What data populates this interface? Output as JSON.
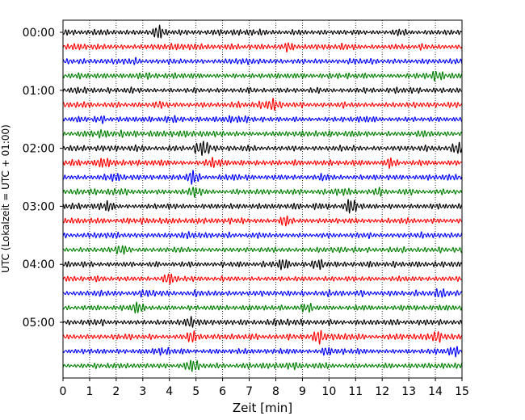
{
  "chart_data": {
    "type": "line",
    "title": "",
    "chart_subtype": "helicorder / seismogram drum plot",
    "xlabel": "Zeit  [min]",
    "ylabel": "UTC (Lokalzeit = UTC + 01:00)",
    "xlim": [
      0,
      15
    ],
    "x_ticks": [
      0,
      1,
      2,
      3,
      4,
      5,
      6,
      7,
      8,
      9,
      10,
      11,
      12,
      13,
      14,
      15
    ],
    "y_tick_labels": [
      "00:00",
      "01:00",
      "02:00",
      "03:00",
      "04:00",
      "05:00"
    ],
    "trace_colors": [
      "#000000",
      "#ff0000",
      "#0000ff",
      "#008000"
    ],
    "trace_count": 24,
    "minutes_per_trace": 15,
    "grid": "vertical dotted at each minute",
    "legend": "none",
    "series": [
      {
        "start": "00:00",
        "color": "#000000",
        "bursts": [
          [
            3.6,
            0.85
          ]
        ]
      },
      {
        "start": "00:15",
        "color": "#ff0000",
        "bursts": [
          [
            8.5,
            0.45
          ]
        ]
      },
      {
        "start": "00:30",
        "color": "#0000ff",
        "bursts": []
      },
      {
        "start": "00:45",
        "color": "#008000",
        "bursts": [
          [
            14.1,
            0.55
          ]
        ]
      },
      {
        "start": "01:00",
        "color": "#000000",
        "bursts": []
      },
      {
        "start": "01:15",
        "color": "#ff0000",
        "bursts": [
          [
            7.9,
            0.7
          ]
        ]
      },
      {
        "start": "01:30",
        "color": "#0000ff",
        "bursts": []
      },
      {
        "start": "01:45",
        "color": "#008000",
        "bursts": [
          [
            1.5,
            0.35
          ]
        ]
      },
      {
        "start": "02:00",
        "color": "#000000",
        "bursts": [
          [
            5.3,
            0.9
          ],
          [
            14.8,
            0.5
          ]
        ]
      },
      {
        "start": "02:15",
        "color": "#ff0000",
        "bursts": [
          [
            1.5,
            0.55
          ],
          [
            5.6,
            0.55
          ],
          [
            12.3,
            0.45
          ]
        ]
      },
      {
        "start": "02:30",
        "color": "#0000ff",
        "bursts": [
          [
            4.9,
            0.85
          ],
          [
            2.0,
            0.45
          ]
        ]
      },
      {
        "start": "02:45",
        "color": "#008000",
        "bursts": [
          [
            4.9,
            0.45
          ],
          [
            11.9,
            0.45
          ]
        ]
      },
      {
        "start": "03:00",
        "color": "#000000",
        "bursts": [
          [
            10.8,
            0.9
          ],
          [
            1.7,
            0.45
          ]
        ]
      },
      {
        "start": "03:15",
        "color": "#ff0000",
        "bursts": [
          [
            8.4,
            0.5
          ]
        ]
      },
      {
        "start": "03:30",
        "color": "#0000ff",
        "bursts": []
      },
      {
        "start": "03:45",
        "color": "#008000",
        "bursts": [
          [
            2.2,
            0.35
          ]
        ]
      },
      {
        "start": "04:00",
        "color": "#000000",
        "bursts": [
          [
            8.3,
            0.55
          ],
          [
            9.6,
            0.55
          ]
        ]
      },
      {
        "start": "04:15",
        "color": "#ff0000",
        "bursts": [
          [
            4.0,
            0.45
          ]
        ]
      },
      {
        "start": "04:30",
        "color": "#0000ff",
        "bursts": [
          [
            14.2,
            0.5
          ]
        ]
      },
      {
        "start": "04:45",
        "color": "#008000",
        "bursts": [
          [
            2.8,
            0.7
          ],
          [
            9.2,
            0.45
          ]
        ]
      },
      {
        "start": "05:00",
        "color": "#000000",
        "bursts": [
          [
            4.8,
            0.55
          ]
        ]
      },
      {
        "start": "05:15",
        "color": "#ff0000",
        "bursts": [
          [
            4.8,
            0.55
          ],
          [
            9.6,
            0.7
          ],
          [
            14.1,
            0.45
          ]
        ]
      },
      {
        "start": "05:30",
        "color": "#0000ff",
        "bursts": [
          [
            9.9,
            0.45
          ],
          [
            14.7,
            0.5
          ]
        ]
      },
      {
        "start": "05:45",
        "color": "#008000",
        "bursts": [
          [
            4.9,
            0.65
          ]
        ]
      }
    ]
  }
}
